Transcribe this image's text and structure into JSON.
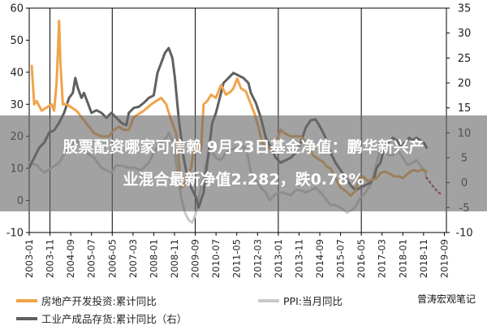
{
  "headline": {
    "line1": "股票配资哪家可信赖 9月23日基金净值：鹏华新兴产",
    "line2": "业混合最新净值2.282，跌0.78%"
  },
  "watermark": "曾涛宏观笔记",
  "colors": {
    "series1": "#F0A44B",
    "series2": "#C9C9C9",
    "series3": "#606060",
    "projection": "#B22222",
    "overlay": "#6b6b6b"
  },
  "chart_data": {
    "type": "line",
    "y_left": {
      "ticks": [
        "-10",
        "0",
        "10",
        "20",
        "30",
        "40",
        "50",
        "60"
      ],
      "range": [
        -10,
        60
      ]
    },
    "y_right": {
      "ticks": [
        "-10",
        "-5",
        "0",
        "5",
        "10",
        "15",
        "20",
        "25",
        "30",
        "35"
      ],
      "range": [
        -10,
        35
      ]
    },
    "x_range": [
      2003.0,
      2019.75
    ],
    "x_ticks": [
      "2003-01",
      "2003-11",
      "2004-09",
      "2005-07",
      "2006-05",
      "2007-03",
      "2008-01",
      "2008-11",
      "2009-09",
      "2010-07",
      "2011-05",
      "2012-03",
      "2013-01",
      "2013-11",
      "2014-09",
      "2015-07",
      "2016-05",
      "2017-03",
      "2018-01",
      "2018-11",
      "2019-09"
    ],
    "x_tick_values": [
      2003.0,
      2003.833,
      2004.667,
      2005.5,
      2006.333,
      2007.167,
      2008.0,
      2008.833,
      2009.667,
      2010.5,
      2011.333,
      2012.167,
      2013.0,
      2013.833,
      2014.667,
      2015.5,
      2016.333,
      2017.167,
      2018.0,
      2018.833,
      2019.667
    ],
    "vertical_lines_at": [
      2003.833,
      2006.333,
      2009.667,
      2013.0,
      2016.333
    ],
    "series": [
      {
        "name": "房地产开发投资:累计同比",
        "axis": "left",
        "points": [
          [
            2003.1,
            42
          ],
          [
            2003.2,
            30
          ],
          [
            2003.3,
            31
          ],
          [
            2003.5,
            28
          ],
          [
            2003.7,
            29
          ],
          [
            2003.9,
            30
          ],
          [
            2004.0,
            28
          ],
          [
            2004.1,
            37
          ],
          [
            2004.2,
            56
          ],
          [
            2004.25,
            43
          ],
          [
            2004.35,
            30
          ],
          [
            2004.5,
            30
          ],
          [
            2004.7,
            29
          ],
          [
            2004.9,
            28
          ],
          [
            2005.0,
            27
          ],
          [
            2005.1,
            26
          ],
          [
            2005.3,
            24
          ],
          [
            2005.6,
            21
          ],
          [
            2005.9,
            20
          ],
          [
            2006.0,
            20
          ],
          [
            2006.2,
            20
          ],
          [
            2006.4,
            22
          ],
          [
            2006.6,
            23
          ],
          [
            2006.8,
            22
          ],
          [
            2007.0,
            22
          ],
          [
            2007.2,
            26
          ],
          [
            2007.4,
            27
          ],
          [
            2007.6,
            28
          ],
          [
            2007.9,
            30
          ],
          [
            2008.1,
            31
          ],
          [
            2008.3,
            32
          ],
          [
            2008.5,
            30
          ],
          [
            2008.7,
            25
          ],
          [
            2008.9,
            21
          ],
          [
            2009.1,
            4
          ],
          [
            2009.25,
            5
          ],
          [
            2009.35,
            8
          ],
          [
            2009.5,
            10
          ],
          [
            2009.6,
            16
          ],
          [
            2009.75,
            17
          ],
          [
            2009.9,
            16
          ],
          [
            2010.0,
            30
          ],
          [
            2010.15,
            31
          ],
          [
            2010.3,
            33
          ],
          [
            2010.5,
            32
          ],
          [
            2010.7,
            36
          ],
          [
            2010.9,
            33
          ],
          [
            2011.1,
            34
          ],
          [
            2011.2,
            35
          ],
          [
            2011.35,
            38
          ],
          [
            2011.5,
            35
          ],
          [
            2011.7,
            34
          ],
          [
            2011.9,
            30
          ],
          [
            2012.05,
            27
          ],
          [
            2012.2,
            23
          ],
          [
            2012.35,
            18
          ],
          [
            2012.5,
            17
          ],
          [
            2012.7,
            16
          ],
          [
            2012.9,
            17
          ],
          [
            2013.0,
            20
          ],
          [
            2013.1,
            22
          ],
          [
            2013.25,
            21
          ],
          [
            2013.5,
            20
          ],
          [
            2013.7,
            20
          ],
          [
            2013.9,
            20
          ],
          [
            2014.0,
            19
          ],
          [
            2014.2,
            17
          ],
          [
            2014.4,
            14
          ],
          [
            2014.6,
            13
          ],
          [
            2014.8,
            12
          ],
          [
            2014.95,
            10.5
          ],
          [
            2015.1,
            10
          ],
          [
            2015.3,
            7
          ],
          [
            2015.5,
            4
          ],
          [
            2015.7,
            3
          ],
          [
            2015.9,
            1.5
          ],
          [
            2016.1,
            3
          ],
          [
            2016.25,
            7
          ],
          [
            2016.4,
            7.5
          ],
          [
            2016.6,
            6
          ],
          [
            2016.8,
            6.5
          ],
          [
            2016.95,
            7
          ],
          [
            2017.1,
            8.5
          ],
          [
            2017.25,
            9
          ],
          [
            2017.45,
            8.5
          ],
          [
            2017.65,
            7.5
          ],
          [
            2017.85,
            7.5
          ],
          [
            2018.0,
            7
          ],
          [
            2018.15,
            8
          ],
          [
            2018.3,
            9
          ],
          [
            2018.45,
            9.5
          ],
          [
            2018.6,
            9
          ],
          [
            2018.7,
            9.5
          ],
          [
            2018.85,
            9.5
          ],
          [
            2018.95,
            9
          ]
        ]
      },
      {
        "name": "PPI:当月同比",
        "axis": "right",
        "points": [
          [
            2003.0,
            4
          ],
          [
            2003.3,
            3.5
          ],
          [
            2003.6,
            2
          ],
          [
            2003.9,
            3
          ],
          [
            2004.2,
            4
          ],
          [
            2004.5,
            6.5
          ],
          [
            2004.8,
            8
          ],
          [
            2004.9,
            8.5
          ],
          [
            2005.1,
            7
          ],
          [
            2005.3,
            6
          ],
          [
            2005.6,
            5
          ],
          [
            2005.9,
            3
          ],
          [
            2006.1,
            2.5
          ],
          [
            2006.3,
            2
          ],
          [
            2006.5,
            3.5
          ],
          [
            2006.8,
            3.3
          ],
          [
            2007.0,
            3
          ],
          [
            2007.2,
            3
          ],
          [
            2007.5,
            2.5
          ],
          [
            2007.8,
            4
          ],
          [
            2008.0,
            6
          ],
          [
            2008.3,
            8
          ],
          [
            2008.5,
            9
          ],
          [
            2008.6,
            10
          ],
          [
            2008.8,
            8
          ],
          [
            2008.95,
            2
          ],
          [
            2009.1,
            -3
          ],
          [
            2009.25,
            -6
          ],
          [
            2009.4,
            -7.5
          ],
          [
            2009.55,
            -8
          ],
          [
            2009.7,
            -6
          ],
          [
            2009.85,
            -2
          ],
          [
            2010.0,
            1
          ],
          [
            2010.1,
            4
          ],
          [
            2010.3,
            6.5
          ],
          [
            2010.5,
            5
          ],
          [
            2010.7,
            4.5
          ],
          [
            2010.9,
            6
          ],
          [
            2011.1,
            6.5
          ],
          [
            2011.3,
            7
          ],
          [
            2011.55,
            7.5
          ],
          [
            2011.75,
            6
          ],
          [
            2011.9,
            2
          ],
          [
            2012.05,
            1
          ],
          [
            2012.3,
            -1
          ],
          [
            2012.5,
            -2
          ],
          [
            2012.65,
            -3.5
          ],
          [
            2012.85,
            -2.5
          ],
          [
            2013.0,
            -2
          ],
          [
            2013.2,
            -2
          ],
          [
            2013.5,
            -2.5
          ],
          [
            2013.7,
            -1.5
          ],
          [
            2013.9,
            -1.5
          ],
          [
            2014.1,
            -2
          ],
          [
            2014.3,
            -1.5
          ],
          [
            2014.5,
            -1
          ],
          [
            2014.7,
            -2
          ],
          [
            2014.9,
            -3.2
          ],
          [
            2015.1,
            -4.5
          ],
          [
            2015.3,
            -4.5
          ],
          [
            2015.5,
            -5
          ],
          [
            2015.75,
            -6
          ],
          [
            2015.95,
            -5.5
          ],
          [
            2016.1,
            -4.8
          ],
          [
            2016.3,
            -3
          ],
          [
            2016.5,
            -2
          ],
          [
            2016.7,
            -0.5
          ],
          [
            2016.85,
            2
          ],
          [
            2017.0,
            5
          ],
          [
            2017.15,
            7.8
          ],
          [
            2017.25,
            7
          ],
          [
            2017.4,
            5.5
          ],
          [
            2017.6,
            5.5
          ],
          [
            2017.8,
            6.5
          ],
          [
            2018.0,
            5
          ],
          [
            2018.2,
            3.5
          ],
          [
            2018.4,
            4
          ],
          [
            2018.55,
            4.5
          ],
          [
            2018.7,
            3.5
          ],
          [
            2018.85,
            2.5
          ],
          [
            2018.95,
            1
          ]
        ]
      },
      {
        "name": "工业产成品存货:累计同比（右）",
        "axis": "right",
        "points": [
          [
            2003.0,
            3
          ],
          [
            2003.2,
            5
          ],
          [
            2003.4,
            7
          ],
          [
            2003.6,
            8
          ],
          [
            2003.8,
            10
          ],
          [
            2004.0,
            10.5
          ],
          [
            2004.2,
            12
          ],
          [
            2004.4,
            14
          ],
          [
            2004.6,
            17
          ],
          [
            2004.75,
            18
          ],
          [
            2004.85,
            21
          ],
          [
            2004.95,
            19
          ],
          [
            2005.1,
            17
          ],
          [
            2005.2,
            18
          ],
          [
            2005.35,
            16
          ],
          [
            2005.5,
            14
          ],
          [
            2005.7,
            14.5
          ],
          [
            2005.9,
            14
          ],
          [
            2006.1,
            13
          ],
          [
            2006.3,
            14
          ],
          [
            2006.5,
            13
          ],
          [
            2006.7,
            12
          ],
          [
            2006.9,
            11.5
          ],
          [
            2007.0,
            14
          ],
          [
            2007.2,
            15
          ],
          [
            2007.4,
            15.2
          ],
          [
            2007.6,
            16
          ],
          [
            2007.8,
            17
          ],
          [
            2008.0,
            17.5
          ],
          [
            2008.15,
            22
          ],
          [
            2008.3,
            24
          ],
          [
            2008.45,
            26
          ],
          [
            2008.6,
            27
          ],
          [
            2008.75,
            25
          ],
          [
            2008.85,
            21
          ],
          [
            2009.0,
            13
          ],
          [
            2009.2,
            5
          ],
          [
            2009.35,
            1
          ],
          [
            2009.5,
            -1
          ],
          [
            2009.7,
            -3
          ],
          [
            2009.8,
            -5
          ],
          [
            2010.0,
            -2
          ],
          [
            2010.2,
            6
          ],
          [
            2010.35,
            12
          ],
          [
            2010.5,
            14
          ],
          [
            2010.65,
            17
          ],
          [
            2010.8,
            20
          ],
          [
            2011.0,
            21
          ],
          [
            2011.2,
            22
          ],
          [
            2011.4,
            21.5
          ],
          [
            2011.6,
            21
          ],
          [
            2011.8,
            20
          ],
          [
            2011.9,
            18
          ],
          [
            2012.1,
            16
          ],
          [
            2012.3,
            13
          ],
          [
            2012.5,
            9
          ],
          [
            2012.7,
            7
          ],
          [
            2012.9,
            5
          ],
          [
            2013.1,
            4
          ],
          [
            2013.3,
            4.5
          ],
          [
            2013.5,
            5
          ],
          [
            2013.7,
            6
          ],
          [
            2013.9,
            8
          ],
          [
            2014.1,
            11
          ],
          [
            2014.3,
            12.5
          ],
          [
            2014.5,
            12.7
          ],
          [
            2014.7,
            11
          ],
          [
            2014.9,
            9
          ],
          [
            2015.1,
            6
          ],
          [
            2015.3,
            4
          ],
          [
            2015.5,
            2.5
          ],
          [
            2015.7,
            1
          ],
          [
            2015.9,
            -0.5
          ],
          [
            2016.1,
            -1.5
          ],
          [
            2016.3,
            -1
          ],
          [
            2016.5,
            -0.5
          ],
          [
            2016.7,
            0
          ],
          [
            2016.85,
            1
          ],
          [
            2016.95,
            3
          ],
          [
            2017.1,
            4
          ],
          [
            2017.25,
            7
          ],
          [
            2017.4,
            8
          ],
          [
            2017.6,
            9
          ],
          [
            2017.75,
            8.5
          ],
          [
            2017.9,
            7.5
          ],
          [
            2018.1,
            8
          ],
          [
            2018.25,
            9
          ],
          [
            2018.4,
            8.5
          ],
          [
            2018.55,
            9
          ],
          [
            2018.7,
            8.5
          ],
          [
            2018.85,
            8
          ],
          [
            2018.95,
            7
          ]
        ]
      },
      {
        "name": "projection",
        "axis": "right",
        "style": "dotted",
        "points": [
          [
            2018.95,
            1
          ],
          [
            2019.1,
            0
          ],
          [
            2019.25,
            -1
          ],
          [
            2019.4,
            -1.8
          ],
          [
            2019.5,
            -2.2
          ]
        ]
      }
    ],
    "legend": {
      "placement": "bottom",
      "entries": [
        "房地产开发投资:累计同比",
        "PPI:当月同比",
        "工业产成品存货:累计同比（右）"
      ]
    }
  }
}
